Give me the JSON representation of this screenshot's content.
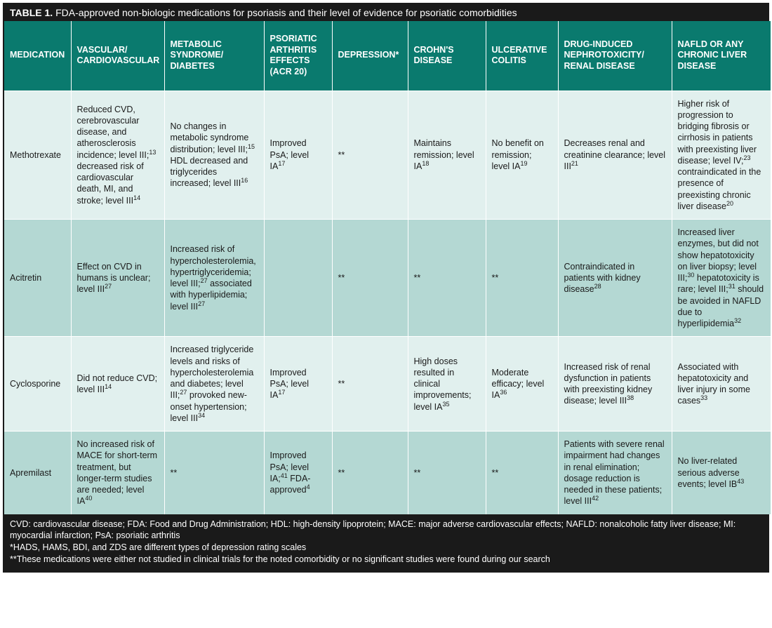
{
  "title_prefix": "TABLE 1.",
  "title_rest": " FDA-approved non-biologic medications for psoriasis and their level of evidence for psoriatic comorbidities",
  "columns": [
    "MEDICATION",
    "VASCULAR/ CARDIOVASCULAR",
    "METABOLIC SYNDROME/ DIABETES",
    "PSORIATIC ARTHRITIS EFFECTS (ACR 20)",
    "DEPRESSION*",
    "CROHN'S DISEASE",
    "ULCERATIVE COLITIS",
    "DRUG-INDUCED NEPHROTOXICITY/ RENAL DISEASE",
    "NAFLD OR ANY CHRONIC LIVER DISEASE"
  ],
  "rows": [
    {
      "shade": "a",
      "cells": [
        {
          "text": "Methotrexate"
        },
        {
          "html": "Reduced CVD, cerebrovascular disease, and atherosclerosis incidence; level III;<sup>13</sup> decreased risk of cardiovascular death, MI, and stroke; level III<sup>14</sup>"
        },
        {
          "html": "No changes in metabolic syndrome distribution; level III;<sup>15</sup> HDL decreased and triglycerides increased; level III<sup>16</sup>"
        },
        {
          "html": "Improved PsA; level IA<sup>17</sup>"
        },
        {
          "text": "**"
        },
        {
          "html": "Maintains remission; level IA<sup>18</sup>"
        },
        {
          "html": "No benefit on remission; level IA<sup>19</sup>"
        },
        {
          "html": "Decreases renal and creatinine clearance; level III<sup>21</sup>"
        },
        {
          "html": "Higher risk of progression to bridging fibrosis or cirrhosis in patients with preexisting liver disease; level IV;<sup>23</sup> contraindicated in the presence of preexisting chronic liver disease<sup>20</sup>"
        }
      ]
    },
    {
      "shade": "b",
      "cells": [
        {
          "text": "Acitretin"
        },
        {
          "html": "Effect on CVD in humans is unclear; level III<sup>27</sup>"
        },
        {
          "html": "Increased risk of hypercholesterolemia, hypertriglyceridemia; level III;<sup>27</sup> associated with hyperlipidemia; level III<sup>27</sup>"
        },
        {
          "text": ""
        },
        {
          "text": "**"
        },
        {
          "text": "**"
        },
        {
          "text": "**"
        },
        {
          "html": "Contraindicated in patients with kidney disease<sup>28</sup>"
        },
        {
          "html": "Increased liver enzymes, but did not show hepatotoxicity on liver biopsy; level III;<sup>30</sup> hepatotoxicity is rare; level III;<sup>31</sup> should be avoided in NAFLD due to hyperlipidemia<sup>32</sup>"
        }
      ]
    },
    {
      "shade": "a",
      "cells": [
        {
          "text": "Cyclosporine"
        },
        {
          "html": "Did not reduce CVD; level III<sup>14</sup>"
        },
        {
          "html": "Increased triglyceride levels and risks of hypercholesterolemia and diabetes; level III;<sup>27</sup> provoked new-onset hypertension; level III<sup>34</sup>"
        },
        {
          "html": "Improved PsA; level IA<sup>17</sup>"
        },
        {
          "text": "**"
        },
        {
          "html": "High doses resulted in clinical improvements; level IA<sup>35</sup>"
        },
        {
          "html": "Moderate efficacy; level IA<sup>36</sup>"
        },
        {
          "html": "Increased risk of renal dysfunction in patients with preexisting kidney disease; level III<sup>38</sup>"
        },
        {
          "html": "Associated with hepatotoxicity and liver injury in some cases<sup>33</sup>"
        }
      ]
    },
    {
      "shade": "b",
      "cells": [
        {
          "text": "Apremilast"
        },
        {
          "html": "No increased risk of MACE for short-term treatment, but longer-term studies are needed; level IA<sup>40</sup>"
        },
        {
          "text": "**"
        },
        {
          "html": "Improved PsA; level IA;<sup>41</sup> FDA-approved<sup>4</sup>"
        },
        {
          "text": "**"
        },
        {
          "text": "**"
        },
        {
          "text": "**"
        },
        {
          "html": "Patients with severe renal impairment had changes in renal elimination; dosage reduction is needed in these patients; level III<sup>42</sup>"
        },
        {
          "html": "No liver-related serious adverse events; level IB<sup>43</sup>"
        }
      ]
    }
  ],
  "footnotes": [
    "CVD: cardiovascular disease;  FDA: Food and Drug Administration; HDL: high-density lipoprotein; MACE: major adverse cardiovascular effects; NAFLD: nonalcoholic fatty liver disease; MI: myocardial infarction; PsA: psoriatic arthritis",
    "*HADS, HAMS, BDI, and ZDS are different types of depression rating scales",
    "**These medications were either not studied in clinical trials for the noted comorbidity or no significant studies were found during our search"
  ],
  "colors": {
    "border": "#1a1a1a",
    "header_bg": "#0a7a6e",
    "row_light": "#e1f0ee",
    "row_dark": "#b4d8d3",
    "footer_bg": "#1a1a1a",
    "text_light": "#ffffff",
    "text_dark": "#1a1a1a"
  }
}
